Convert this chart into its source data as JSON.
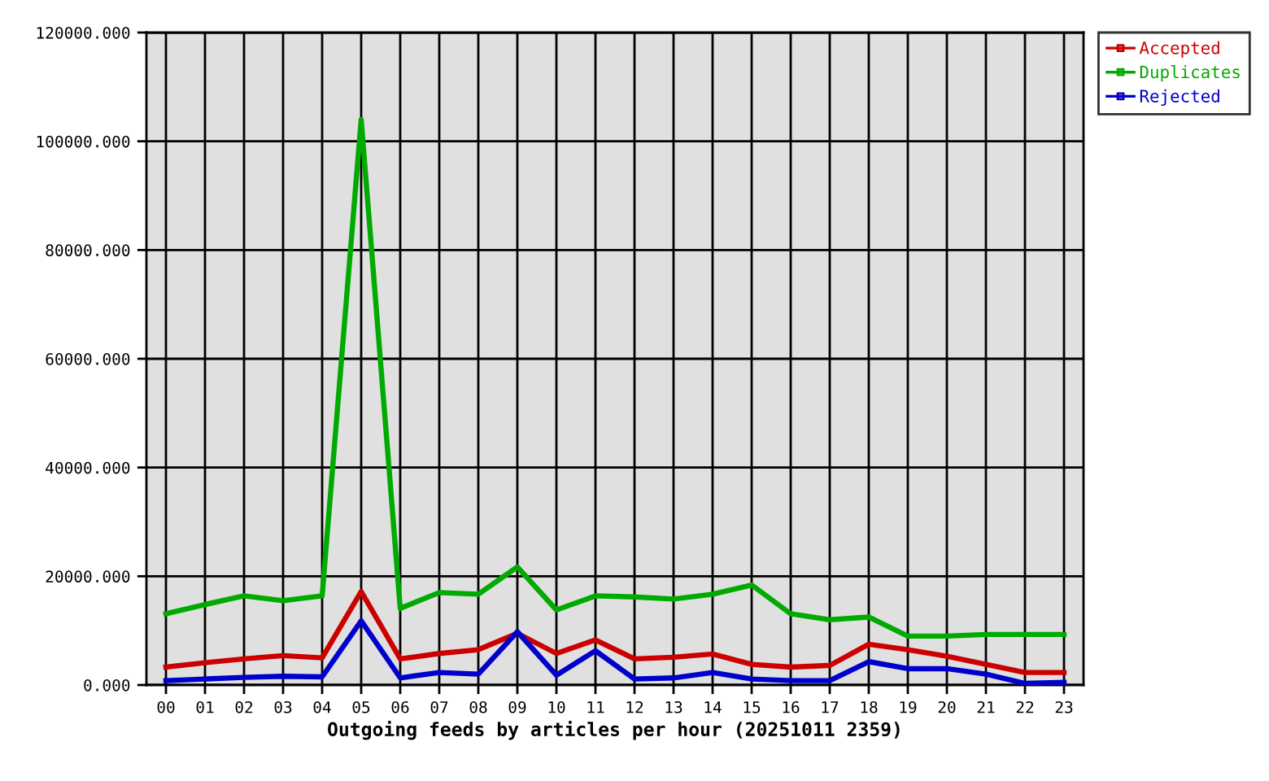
{
  "chart_data": {
    "type": "line",
    "xlabel": "Outgoing feeds by articles per hour (20251011 2359)",
    "categories": [
      "00",
      "01",
      "02",
      "03",
      "04",
      "05",
      "06",
      "07",
      "08",
      "09",
      "10",
      "11",
      "12",
      "13",
      "14",
      "15",
      "16",
      "17",
      "18",
      "19",
      "20",
      "21",
      "22",
      "23"
    ],
    "series": [
      {
        "name": "Accepted",
        "color": "#cc0000",
        "values": [
          3300,
          4100,
          4800,
          5400,
          5000,
          17200,
          4800,
          5800,
          6500,
          9500,
          5800,
          8300,
          4800,
          5100,
          5700,
          3800,
          3300,
          3600,
          7500,
          6500,
          5300,
          3800,
          2300,
          2300
        ]
      },
      {
        "name": "Duplicates",
        "color": "#00aa00",
        "values": [
          13100,
          14800,
          16400,
          15500,
          16400,
          104000,
          14100,
          17000,
          16700,
          21700,
          13800,
          16400,
          16200,
          15800,
          16700,
          18400,
          13100,
          12000,
          12500,
          9000,
          9000,
          9300,
          9300,
          9300
        ]
      },
      {
        "name": "Rejected",
        "color": "#0000cc",
        "values": [
          800,
          1100,
          1400,
          1600,
          1500,
          11800,
          1300,
          2300,
          2000,
          9800,
          1800,
          6300,
          1100,
          1300,
          2300,
          1100,
          800,
          800,
          4300,
          3000,
          3000,
          2000,
          300,
          500
        ]
      }
    ],
    "ylim": [
      0,
      120000
    ],
    "yticks": [
      {
        "value": 0,
        "label": "0.000"
      },
      {
        "value": 20000,
        "label": "20000.000"
      },
      {
        "value": 40000,
        "label": "40000.000"
      },
      {
        "value": 60000,
        "label": "60000.000"
      },
      {
        "value": 80000,
        "label": "80000.000"
      },
      {
        "value": 100000,
        "label": "100000.000"
      },
      {
        "value": 120000,
        "label": "120000.000"
      }
    ],
    "grid": true,
    "legend": "top right",
    "line_style": "solid"
  }
}
